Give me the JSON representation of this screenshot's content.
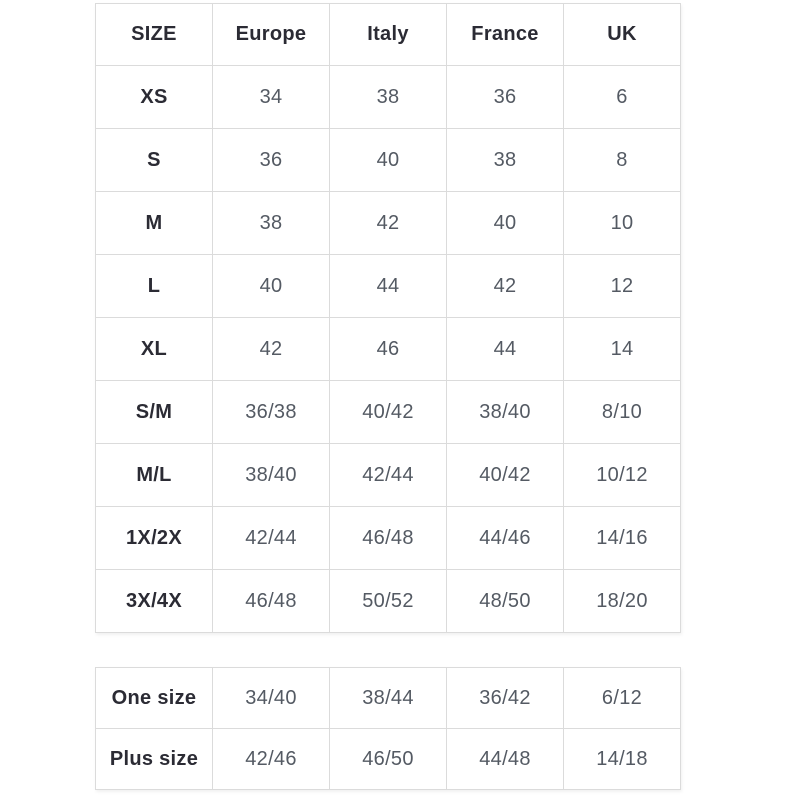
{
  "colors": {
    "background": "#ffffff",
    "border": "#dbdbdb",
    "label_text": "#2b2b34",
    "value_text": "#545a63"
  },
  "main_table": {
    "headers": [
      "SIZE",
      "Europe",
      "Italy",
      "France",
      "UK"
    ],
    "rows": [
      {
        "label": "XS",
        "values": [
          "34",
          "38",
          "36",
          "6"
        ]
      },
      {
        "label": "S",
        "values": [
          "36",
          "40",
          "38",
          "8"
        ]
      },
      {
        "label": "M",
        "values": [
          "38",
          "42",
          "40",
          "10"
        ]
      },
      {
        "label": "L",
        "values": [
          "40",
          "44",
          "42",
          "12"
        ]
      },
      {
        "label": "XL",
        "values": [
          "42",
          "46",
          "44",
          "14"
        ]
      },
      {
        "label": "S/M",
        "values": [
          "36/38",
          "40/42",
          "38/40",
          "8/10"
        ]
      },
      {
        "label": "M/L",
        "values": [
          "38/40",
          "42/44",
          "40/42",
          "10/12"
        ]
      },
      {
        "label": "1X/2X",
        "values": [
          "42/44",
          "46/48",
          "44/46",
          "14/16"
        ]
      },
      {
        "label": "3X/4X",
        "values": [
          "46/48",
          "50/52",
          "48/50",
          "18/20"
        ]
      }
    ]
  },
  "extra_table": {
    "rows": [
      {
        "label": "One size",
        "values": [
          "34/40",
          "38/44",
          "36/42",
          "6/12"
        ]
      },
      {
        "label": "Plus size",
        "values": [
          "42/46",
          "46/50",
          "44/48",
          "14/18"
        ]
      }
    ]
  }
}
